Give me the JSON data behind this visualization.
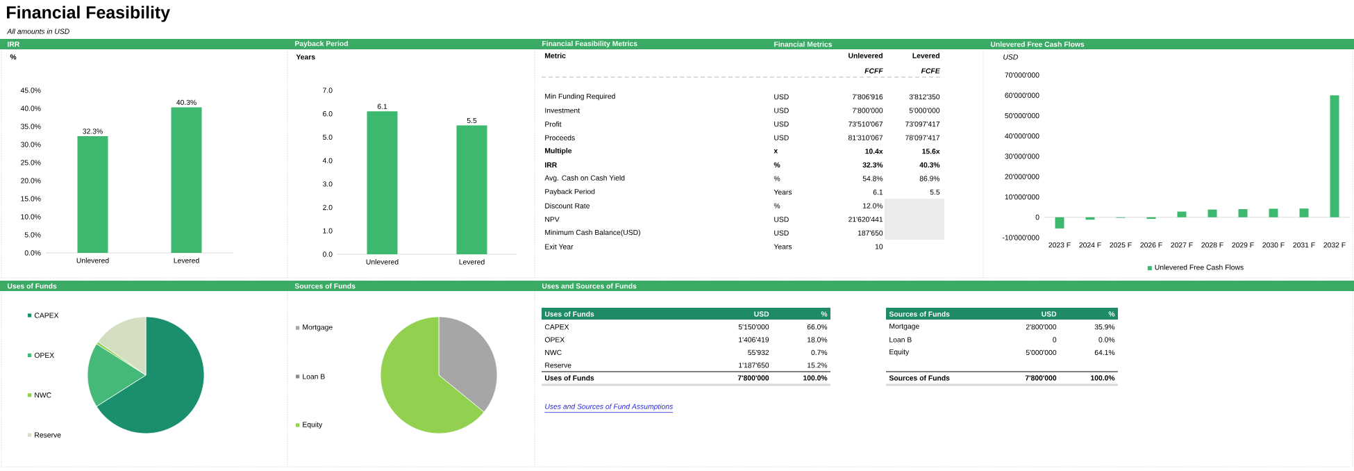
{
  "chart_data": [
    {
      "type": "other",
      "title": "Financial Feasibility",
      "subtitle": "All amounts in USD"
    },
    {
      "type": "bar",
      "title": "IRR",
      "ylabel": "%",
      "categories": [
        "Unlevered",
        "Levered"
      ],
      "values": [
        32.3,
        40.3
      ],
      "color": "#3db86f",
      "value_labels": [
        "32.3%",
        "40.3%"
      ],
      "ylim": [
        0,
        45
      ],
      "yticks": [
        {
          "value": 0,
          "label": "0.0%"
        },
        {
          "value": 5,
          "label": "5.0%"
        },
        {
          "value": 10,
          "label": "10.0%"
        },
        {
          "value": 15,
          "label": "15.0%"
        },
        {
          "value": 20,
          "label": "20.0%"
        },
        {
          "value": 25,
          "label": "25.0%"
        },
        {
          "value": 30,
          "label": "30.0%"
        },
        {
          "value": 35,
          "label": "35.0%"
        },
        {
          "value": 40,
          "label": "40.0%"
        },
        {
          "value": 45,
          "label": "45.0%"
        }
      ]
    },
    {
      "type": "bar",
      "title": "Payback Period",
      "ylabel": "Years",
      "categories": [
        "Unlevered",
        "Levered"
      ],
      "values": [
        6.1,
        5.5
      ],
      "color": "#3db86f",
      "data_labels": true,
      "ylim": [
        0,
        7
      ],
      "yticks": [
        {
          "value": 0,
          "label": "0.0"
        },
        {
          "value": 1,
          "label": "1.0"
        },
        {
          "value": 2,
          "label": "2.0"
        },
        {
          "value": 3,
          "label": "3.0"
        },
        {
          "value": 4,
          "label": "4.0"
        },
        {
          "value": 5,
          "label": "5.0"
        },
        {
          "value": 6,
          "label": "6.0"
        },
        {
          "value": 7,
          "label": "7.0"
        }
      ]
    },
    {
      "type": "other",
      "title": "Financial Feasibility Metrics",
      "subtitle": "Financial Metrics",
      "annotations": [
        "Metric",
        "Unlevered",
        "Levered",
        "FCFF",
        "FCFE",
        "Min Funding Required",
        "USD",
        "7'806'916",
        "3'812'350",
        "Investment",
        "USD",
        "7'800'000",
        "5'000'000",
        "Profit",
        "USD",
        "73'510'067",
        "73'097'417",
        "Proceeds",
        "USD",
        "81'310'067",
        "78'097'417",
        "Multiple",
        "x",
        "10.4x",
        "15.6x",
        "IRR",
        "%",
        "32.3%",
        "40.3%",
        "Avg. Cash on Cash Yield",
        "%",
        "54.8%",
        "86.9%",
        "Payback Period",
        "Years",
        "6.1",
        "5.5",
        "Discount Rate",
        "%",
        "12.0%",
        "NPV",
        "USD",
        "21'620'441",
        "Minimum Cash Balance(USD)",
        "USD",
        "187'650",
        "Exit Year",
        "Years",
        "10"
      ]
    },
    {
      "type": "bar",
      "title": "Unlevered Free Cash Flows",
      "ylabel": "USD",
      "categories": [
        "2023 F",
        "2024 F",
        "2025 F",
        "2026 F",
        "2027 F",
        "2028 F",
        "2029 F",
        "2030 F",
        "2031 F",
        "2032 F"
      ],
      "series": [
        {
          "name": "Unlevered Free Cash Flows",
          "color": "#3db86f",
          "values": [
            -5500000,
            -1200000,
            -300000,
            -800000,
            2800000,
            3800000,
            4000000,
            4200000,
            4300000,
            60000000
          ]
        }
      ],
      "legend": "bottom",
      "ylim": [
        -10000000,
        70000000
      ],
      "yticks": [
        {
          "value": -10000000,
          "label": "-10'000'000"
        },
        0,
        {
          "value": 10000000,
          "label": "10'000'000"
        },
        {
          "value": 20000000,
          "label": "20'000'000"
        },
        {
          "value": 30000000,
          "label": "30'000'000"
        },
        {
          "value": 40000000,
          "label": "40'000'000"
        },
        {
          "value": 50000000,
          "label": "50'000'000"
        },
        {
          "value": 60000000,
          "label": "60'000'000"
        },
        {
          "value": 70000000,
          "label": "70'000'000"
        }
      ]
    },
    {
      "type": "pie",
      "title": "Uses of Funds",
      "categories": [
        "CAPEX",
        "OPEX",
        "NWC",
        "Reserve"
      ],
      "values": [
        66.0,
        18.0,
        0.7,
        15.3
      ],
      "colors": [
        "#1a8f6e",
        "#45b97a",
        "#8fcf4f",
        "#d3dfc0"
      ],
      "legend": "left"
    },
    {
      "type": "pie",
      "title": "Sources of Funds",
      "categories": [
        "Mortgage",
        "Loan B",
        "Equity"
      ],
      "values": [
        35.9,
        0,
        64.1
      ],
      "colors": [
        "#a6a6a6",
        "#8c8c8c",
        "#92d050"
      ],
      "legend": "left"
    },
    {
      "type": "other",
      "title": "Uses and Sources of Funds",
      "annotations": [
        "Uses of Funds",
        "USD",
        "%",
        "CAPEX",
        "5'150'000",
        "66.0%",
        "OPEX",
        "1'406'419",
        "18.0%",
        "NWC",
        "55'932",
        "0.7%",
        "Reserve",
        "1'187'650",
        "15.2%",
        "Uses of Funds",
        "7'800'000",
        "100.0%",
        "Sources of Funds",
        "USD",
        "%",
        "Mortgage",
        "2'800'000",
        "35.9%",
        "Loan B",
        "0",
        "0.0%",
        "Equity",
        "5'000'000",
        "64.1%",
        "Sources of Funds",
        "7'800'000",
        "100.0%",
        "Uses and Sources of Fund Assumptions"
      ]
    }
  ]
}
